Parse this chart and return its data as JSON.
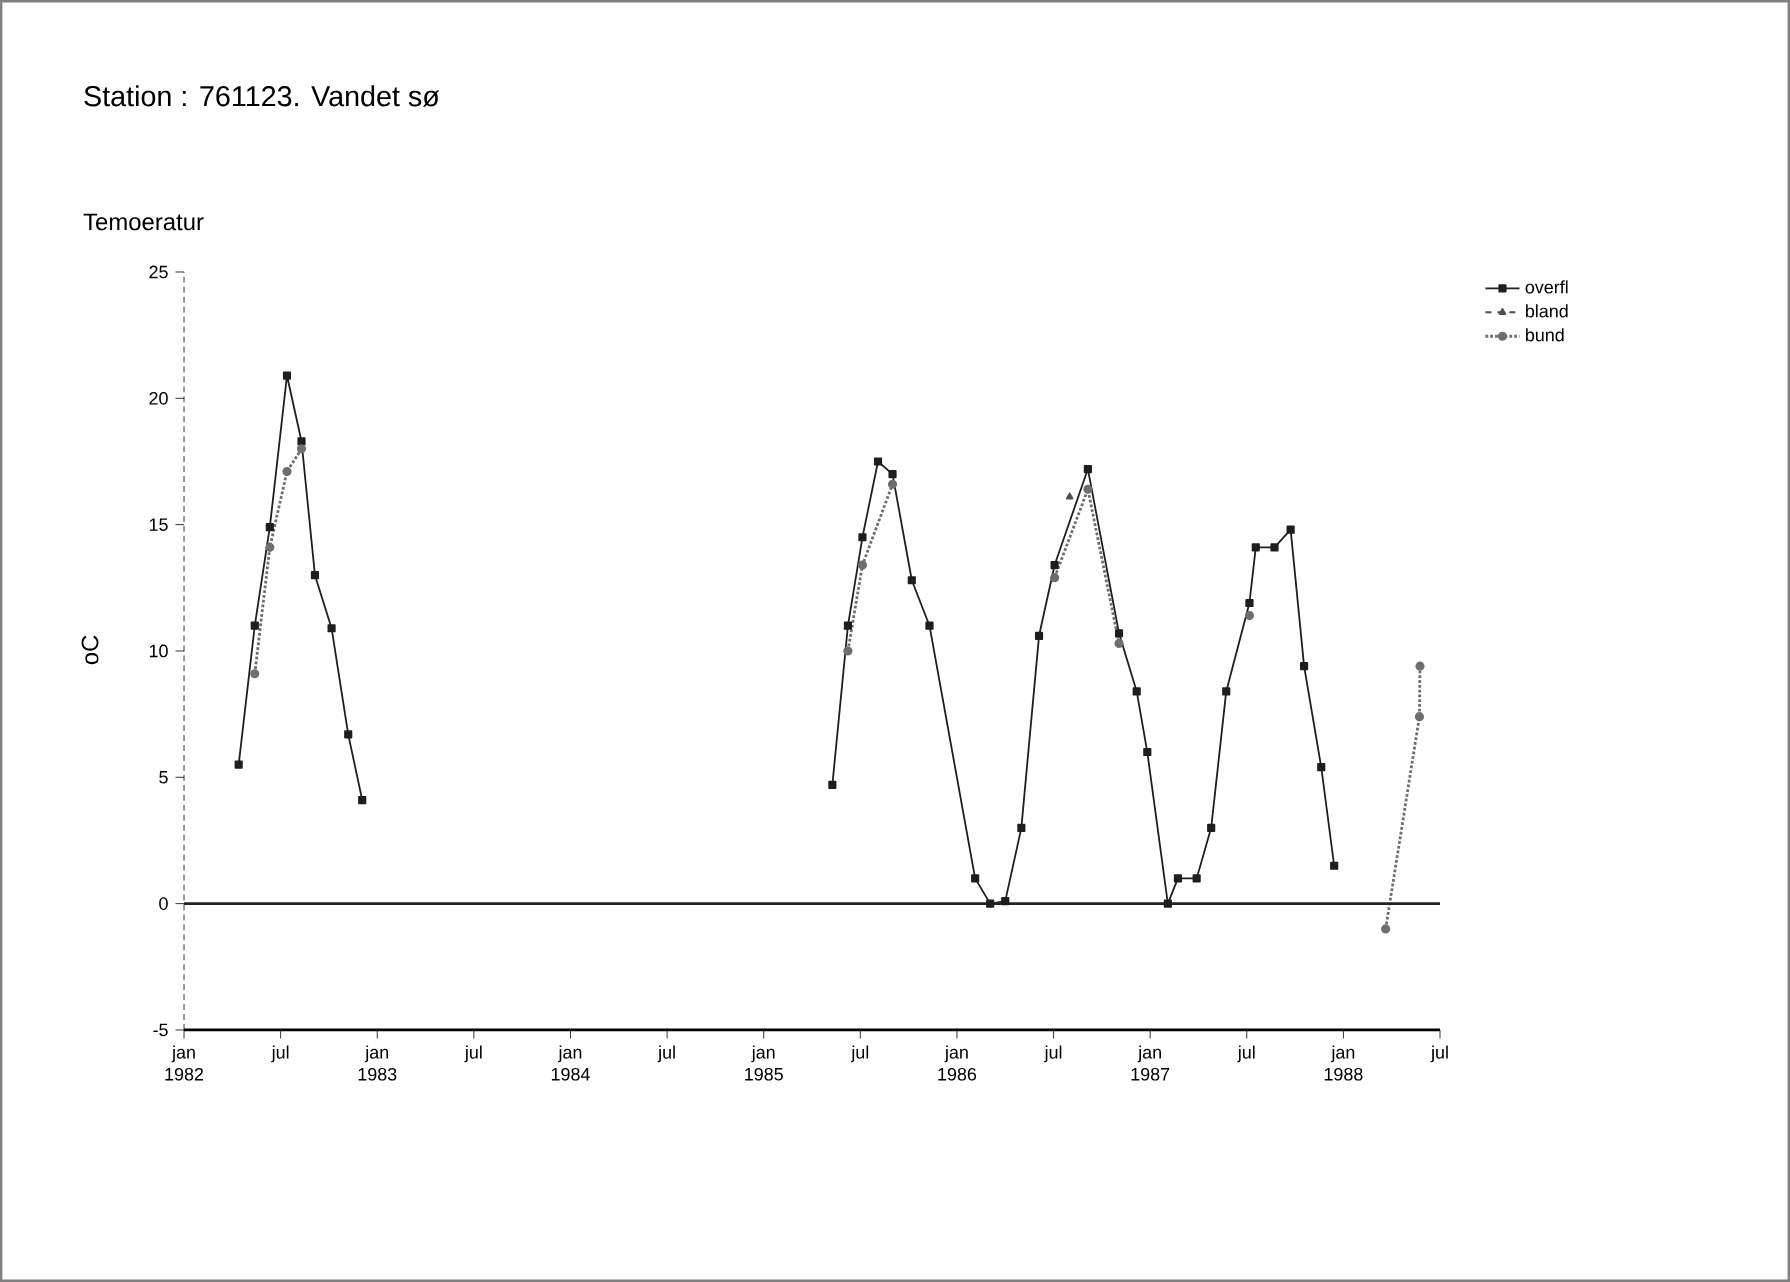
{
  "chart_data": {
    "type": "line",
    "title": "Station : 761123.   Vandet sø",
    "subtitle": "Temoeratur",
    "ylabel": "oC",
    "series": [
      {
        "name": "overfl",
        "color": "#1e1e1e",
        "marker": "square",
        "line_style": "solid",
        "x": [
          "1982-04-13",
          "1982-05-13",
          "1982-06-11",
          "1982-07-13",
          "1982-08-10",
          "1982-09-05",
          "1982-10-06",
          "1982-11-07",
          "1982-12-03",
          "1984-01-01",
          "1985-05-09",
          "1985-06-08",
          "1985-07-05",
          "1985-08-04",
          "1985-09-01",
          "1985-10-07",
          "1985-11-10",
          "1986-02-05",
          "1986-03-03",
          "1986-04-01",
          "1986-05-01",
          "1986-06-04",
          "1986-07-03",
          "1986-09-05",
          "1986-11-03",
          "1986-12-06",
          "1986-12-26",
          "1987-02-04",
          "1987-02-23",
          "1987-03-28",
          "1987-04-25",
          "1987-05-23",
          "1987-07-06",
          "1987-07-18",
          "1987-08-23",
          "1987-09-23",
          "1987-10-18",
          "1987-11-20",
          "1987-12-14"
        ],
        "values": [
          5.5,
          11.0,
          14.9,
          20.9,
          18.3,
          13.0,
          10.9,
          6.7,
          4.1,
          null,
          4.7,
          11.0,
          14.5,
          17.5,
          17.0,
          12.8,
          11.0,
          1.0,
          0.0,
          0.1,
          3.0,
          10.6,
          13.4,
          17.2,
          10.7,
          8.4,
          6.0,
          0.0,
          1.0,
          1.0,
          3.0,
          8.4,
          11.9,
          14.1,
          14.1,
          14.8,
          9.4,
          5.4,
          1.5
        ]
      },
      {
        "name": "bland",
        "color": "#4f4f4f",
        "marker": "triangle",
        "line_style": "dashed",
        "x": [
          "1986-08-01"
        ],
        "values": [
          16.1
        ]
      },
      {
        "name": "bund",
        "color": "#6e6e6e",
        "marker": "circle",
        "line_style": "dotted",
        "x": [
          "1982-05-13",
          "1982-06-11",
          "1982-07-13",
          "1982-08-10",
          "1984-01-01",
          "1985-06-08",
          "1985-07-05",
          "1985-09-01",
          "1985-10-01",
          "1986-07-03",
          "1986-09-05",
          "1986-11-03",
          "1987-01-01",
          "1987-07-06",
          "1988-01-01",
          "1988-03-20",
          "1988-05-23",
          "1988-05-24"
        ],
        "values": [
          9.1,
          14.1,
          17.1,
          18.0,
          null,
          10.0,
          13.4,
          16.6,
          null,
          12.9,
          16.4,
          10.3,
          null,
          11.4,
          null,
          -1.0,
          7.4,
          9.4
        ]
      }
    ],
    "xlim": [
      "1982-01",
      "1988-07"
    ],
    "xticks": [
      {
        "value": "1982-01",
        "label": "jan 1982"
      },
      {
        "value": "1982-07",
        "label": "jul"
      },
      {
        "value": "1983-01",
        "label": "jan 1983"
      },
      {
        "value": "1983-07",
        "label": "jul"
      },
      {
        "value": "1984-01",
        "label": "jan 1984"
      },
      {
        "value": "1984-07",
        "label": "jul"
      },
      {
        "value": "1985-01",
        "label": "jan 1985"
      },
      {
        "value": "1985-07",
        "label": "jul"
      },
      {
        "value": "1986-01",
        "label": "jan 1986"
      },
      {
        "value": "1986-07",
        "label": "jul"
      },
      {
        "value": "1987-01",
        "label": "jan 1987"
      },
      {
        "value": "1987-07",
        "label": "jul"
      },
      {
        "value": "1988-01",
        "label": "jan 1988"
      },
      {
        "value": "1988-07",
        "label": "jul"
      }
    ],
    "ylim": [
      -5,
      25
    ],
    "yticks": [
      -5,
      0,
      5,
      10,
      15,
      20,
      25
    ],
    "ref_lines": [
      {
        "axis": "y",
        "value": 0,
        "color": "#222222"
      }
    ],
    "grid": false,
    "legend": "top right"
  }
}
